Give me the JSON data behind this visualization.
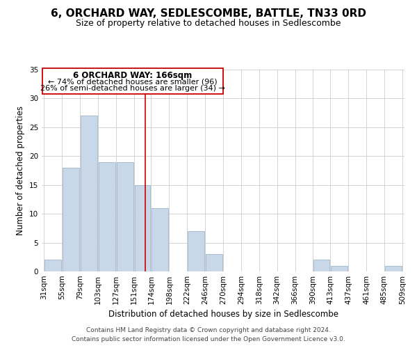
{
  "title": "6, ORCHARD WAY, SEDLESCOMBE, BATTLE, TN33 0RD",
  "subtitle": "Size of property relative to detached houses in Sedlescombe",
  "xlabel": "Distribution of detached houses by size in Sedlescombe",
  "ylabel": "Number of detached properties",
  "footer_line1": "Contains HM Land Registry data © Crown copyright and database right 2024.",
  "footer_line2": "Contains public sector information licensed under the Open Government Licence v3.0.",
  "annotation_title": "6 ORCHARD WAY: 166sqm",
  "annotation_line1": "← 74% of detached houses are smaller (96)",
  "annotation_line2": "26% of semi-detached houses are larger (34) →",
  "property_line_x": 166,
  "bar_edges": [
    31,
    55,
    79,
    103,
    127,
    151,
    174,
    198,
    222,
    246,
    270,
    294,
    318,
    342,
    366,
    390,
    413,
    437,
    461,
    485,
    509
  ],
  "bar_heights": [
    2,
    18,
    27,
    19,
    19,
    15,
    11,
    0,
    7,
    3,
    0,
    0,
    0,
    0,
    0,
    2,
    1,
    0,
    0,
    1,
    0
  ],
  "bar_color": "#c8d8e8",
  "bar_edge_color": "#a0b8cc",
  "property_line_color": "#cc0000",
  "annotation_box_color": "#ffffff",
  "annotation_box_edge_color": "#cc0000",
  "ylim": [
    0,
    35
  ],
  "yticks": [
    0,
    5,
    10,
    15,
    20,
    25,
    30,
    35
  ],
  "grid_color": "#cccccc",
  "background_color": "#ffffff",
  "title_fontsize": 11,
  "subtitle_fontsize": 9,
  "axis_label_fontsize": 8.5,
  "tick_fontsize": 7.5,
  "annotation_title_fontsize": 8.5,
  "annotation_line_fontsize": 8,
  "footer_fontsize": 6.5
}
